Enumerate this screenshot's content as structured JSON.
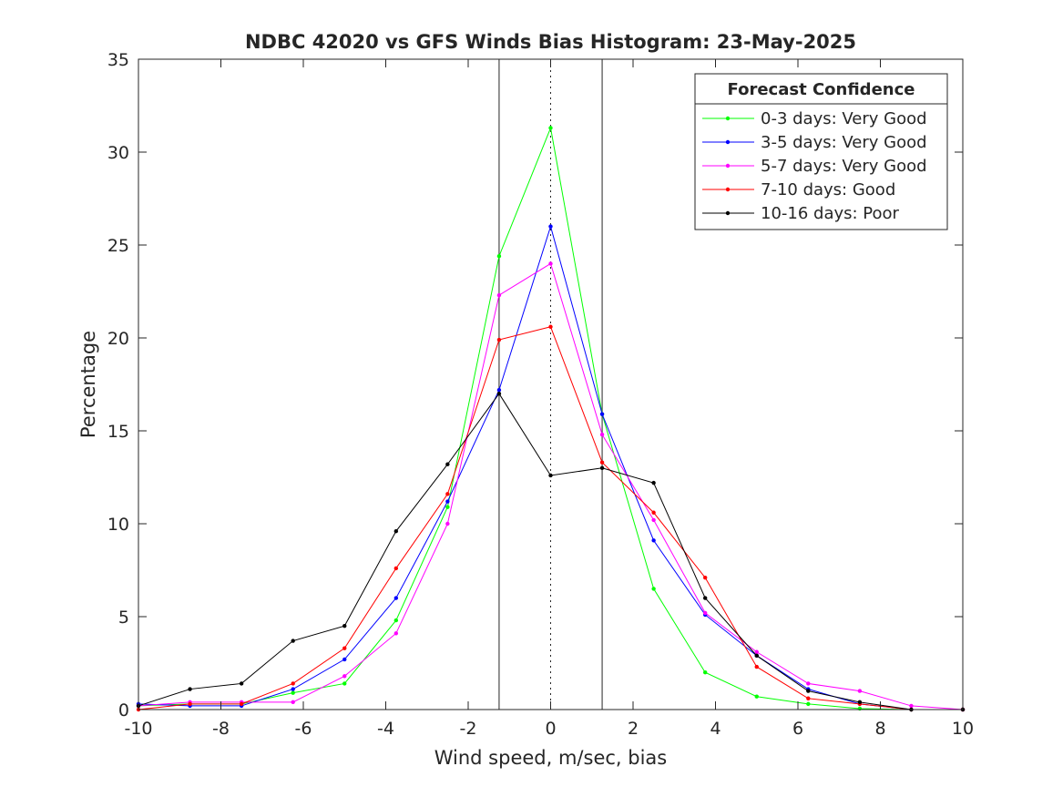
{
  "chart_data": {
    "type": "line",
    "title": "NDBC 42020 vs GFS Winds Bias Histogram: 23-May-2025",
    "xlabel": "Wind speed, m/sec, bias",
    "ylabel": "Percentage",
    "xlim": [
      -10,
      10
    ],
    "ylim": [
      0,
      35
    ],
    "xticks": [
      -10,
      -8,
      -6,
      -4,
      -2,
      0,
      2,
      4,
      6,
      8,
      10
    ],
    "yticks": [
      0,
      5,
      10,
      15,
      20,
      25,
      30,
      35
    ],
    "grid": false,
    "legend_title": "Forecast Confidence",
    "legend_position": "top-right",
    "reference_lines": {
      "solid": [
        -1.25,
        1.25
      ],
      "dotted": [
        0
      ]
    },
    "x": [
      -10,
      -8.75,
      -7.5,
      -6.25,
      -5,
      -3.75,
      -2.5,
      -1.25,
      0,
      1.25,
      2.5,
      3.75,
      5,
      6.25,
      7.5,
      8.75,
      10
    ],
    "series": [
      {
        "name": "0-3 days: Very Good",
        "color": "#00ff00",
        "values": [
          0.2,
          0.3,
          0.3,
          0.9,
          1.4,
          4.8,
          10.9,
          24.4,
          31.3,
          15.9,
          6.5,
          2.0,
          0.7,
          0.3,
          0.05,
          0.0,
          0.0
        ]
      },
      {
        "name": "3-5 days: Very Good",
        "color": "#0000ff",
        "values": [
          0.3,
          0.2,
          0.2,
          1.1,
          2.7,
          6.0,
          11.2,
          17.2,
          26.0,
          15.9,
          9.1,
          5.1,
          2.9,
          1.1,
          0.3,
          0.0,
          0.0
        ]
      },
      {
        "name": "5-7 days: Very Good",
        "color": "#ff00ff",
        "values": [
          0.2,
          0.4,
          0.4,
          0.4,
          1.8,
          4.1,
          10.0,
          22.3,
          24.0,
          14.8,
          10.2,
          5.2,
          3.1,
          1.4,
          1.0,
          0.2,
          0.0
        ]
      },
      {
        "name": "7-10 days: Good",
        "color": "#ff0000",
        "values": [
          0.0,
          0.3,
          0.3,
          1.4,
          3.3,
          7.6,
          11.6,
          19.9,
          20.6,
          13.3,
          10.6,
          7.1,
          2.3,
          0.6,
          0.3,
          0.0,
          0.0
        ]
      },
      {
        "name": "10-16 days: Poor",
        "color": "#000000",
        "values": [
          0.2,
          1.1,
          1.4,
          3.7,
          4.5,
          9.6,
          13.2,
          17.0,
          12.6,
          13.0,
          12.2,
          6.0,
          2.9,
          1.0,
          0.4,
          0.0,
          0.0
        ]
      }
    ]
  }
}
